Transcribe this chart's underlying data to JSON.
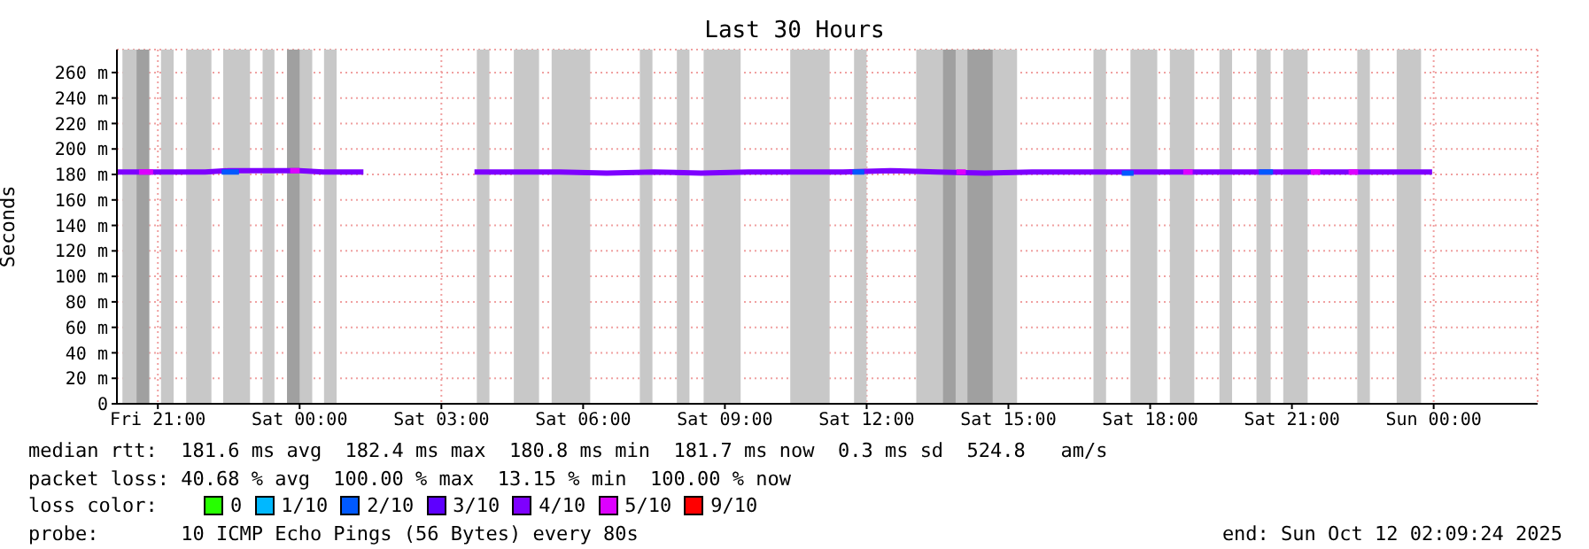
{
  "chart_data": {
    "type": "line",
    "title": "Last 30 Hours",
    "ylabel": "Seconds",
    "xlim": [
      "2025-10-10T20:08",
      "2025-10-12T02:12"
    ],
    "xticks": [
      {
        "value": "2025-10-10T21:00",
        "label": "Fri 21:00"
      },
      {
        "value": "2025-10-11T00:00",
        "label": "Sat 00:00"
      },
      {
        "value": "2025-10-11T03:00",
        "label": "Sat 03:00"
      },
      {
        "value": "2025-10-11T06:00",
        "label": "Sat 06:00"
      },
      {
        "value": "2025-10-11T09:00",
        "label": "Sat 09:00"
      },
      {
        "value": "2025-10-11T12:00",
        "label": "Sat 12:00"
      },
      {
        "value": "2025-10-11T15:00",
        "label": "Sat 15:00"
      },
      {
        "value": "2025-10-11T18:00",
        "label": "Sat 18:00"
      },
      {
        "value": "2025-10-11T21:00",
        "label": "Sat 21:00"
      },
      {
        "value": "2025-10-12T00:00",
        "label": "Sun 00:00"
      }
    ],
    "ylim": [
      0,
      278
    ],
    "yticks": [
      0,
      {
        "value": 20,
        "label": "20 m"
      },
      {
        "value": 40,
        "label": "40 m"
      },
      {
        "value": 60,
        "label": "60 m"
      },
      {
        "value": 80,
        "label": "80 m"
      },
      {
        "value": 100,
        "label": "100 m"
      },
      {
        "value": 120,
        "label": "120 m"
      },
      {
        "value": 140,
        "label": "140 m"
      },
      {
        "value": 160,
        "label": "160 m"
      },
      {
        "value": 180,
        "label": "180 m"
      },
      {
        "value": 200,
        "label": "200 m"
      },
      {
        "value": 220,
        "label": "220 m"
      },
      {
        "value": 240,
        "label": "240 m"
      },
      {
        "value": 260,
        "label": "260 m"
      }
    ],
    "grid": true,
    "legend": "bottom",
    "legend_title": "loss color:",
    "series": [
      {
        "name": "0",
        "color": "#26ff00"
      },
      {
        "name": "1/10",
        "color": "#00b8ff"
      },
      {
        "name": "2/10",
        "color": "#0059ff",
        "x": [
          "2025-10-10T22:21",
          "2025-10-10T22:43",
          "2025-10-11T06:00",
          "2025-10-11T11:42",
          "2025-10-11T11:57",
          "2025-10-11T15:00",
          "2025-10-11T17:24",
          "2025-10-11T17:39",
          "2025-10-11T19:00",
          "2025-10-11T20:18",
          "2025-10-11T20:36"
        ],
        "values": [
          182,
          182,
          null,
          182,
          182,
          null,
          181,
          181,
          null,
          182,
          182
        ]
      },
      {
        "name": "3/10",
        "color": "#5e00ff"
      },
      {
        "name": "4/10",
        "color": "#7e00ff",
        "x": [
          "2025-10-10T20:08",
          "2025-10-10T21:00",
          "2025-10-10T21:30",
          "2025-10-10T22:00",
          "2025-10-10T22:30",
          "2025-10-10T23:00",
          "2025-10-10T23:30",
          "2025-10-11T00:00",
          "2025-10-11T00:30",
          "2025-10-11T01:00",
          "2025-10-11T01:21",
          "2025-10-11T02:30",
          "2025-10-11T03:42",
          "2025-10-11T04:30",
          "2025-10-11T05:30",
          "2025-10-11T06:30",
          "2025-10-11T07:30",
          "2025-10-11T08:30",
          "2025-10-11T09:30",
          "2025-10-11T10:30",
          "2025-10-11T11:30",
          "2025-10-11T12:30",
          "2025-10-11T13:30",
          "2025-10-11T14:30",
          "2025-10-11T15:30",
          "2025-10-11T16:30",
          "2025-10-11T17:30",
          "2025-10-11T18:30",
          "2025-10-11T19:30",
          "2025-10-11T20:30",
          "2025-10-11T21:30",
          "2025-10-11T22:30",
          "2025-10-11T23:30",
          "2025-10-11T23:58"
        ],
        "values": [
          182,
          182,
          182,
          182,
          183,
          183,
          183,
          183,
          182,
          182,
          182,
          null,
          182,
          182,
          182,
          181,
          182,
          181,
          182,
          182,
          182,
          183,
          182,
          181,
          182,
          182,
          182,
          182,
          182,
          182,
          182,
          182,
          182,
          182
        ]
      },
      {
        "name": "5/10",
        "color": "#dd00ff",
        "x": [
          "2025-10-10T20:36",
          "2025-10-10T20:54",
          "2025-10-10T22:00",
          "2025-10-10T23:48",
          "2025-10-11T00:00",
          "2025-10-11T06:00",
          "2025-10-11T13:54",
          "2025-10-11T14:06",
          "2025-10-11T16:00",
          "2025-10-11T18:42",
          "2025-10-11T18:54",
          "2025-10-11T20:00",
          "2025-10-11T21:24",
          "2025-10-11T21:36",
          "2025-10-11T22:00",
          "2025-10-11T22:12",
          "2025-10-11T22:24"
        ],
        "values": [
          182,
          182,
          null,
          183,
          183,
          null,
          182,
          182,
          null,
          182,
          182,
          null,
          182,
          182,
          null,
          182,
          182
        ]
      },
      {
        "name": "9/10",
        "color": "#ff0000"
      }
    ],
    "bands": [
      {
        "axis": "x",
        "from": "2025-10-10T20:15",
        "to": "2025-10-10T20:49",
        "color": "#c8c8c8"
      },
      {
        "axis": "x",
        "from": "2025-10-10T20:33",
        "to": "2025-10-10T20:49",
        "color": "#a0a0a0"
      },
      {
        "axis": "x",
        "from": "2025-10-10T21:04",
        "to": "2025-10-10T21:20",
        "color": "#c8c8c8"
      },
      {
        "axis": "x",
        "from": "2025-10-10T21:36",
        "to": "2025-10-10T22:08",
        "color": "#c8c8c8"
      },
      {
        "axis": "x",
        "from": "2025-10-10T22:23",
        "to": "2025-10-10T22:57",
        "color": "#c8c8c8"
      },
      {
        "axis": "x",
        "from": "2025-10-10T23:13",
        "to": "2025-10-10T23:28",
        "color": "#c8c8c8"
      },
      {
        "axis": "x",
        "from": "2025-10-10T23:44",
        "to": "2025-10-11T00:16",
        "color": "#c8c8c8"
      },
      {
        "axis": "x",
        "from": "2025-10-10T23:44",
        "to": "2025-10-11T00:00",
        "color": "#a0a0a0"
      },
      {
        "axis": "x",
        "from": "2025-10-11T00:31",
        "to": "2025-10-11T00:47",
        "color": "#c8c8c8"
      },
      {
        "axis": "x",
        "from": "2025-10-11T03:45",
        "to": "2025-10-11T04:01",
        "color": "#c8c8c8"
      },
      {
        "axis": "x",
        "from": "2025-10-11T04:32",
        "to": "2025-10-11T05:04",
        "color": "#c8c8c8"
      },
      {
        "axis": "x",
        "from": "2025-10-11T05:20",
        "to": "2025-10-11T06:09",
        "color": "#c8c8c8"
      },
      {
        "axis": "x",
        "from": "2025-10-11T07:12",
        "to": "2025-10-11T07:28",
        "color": "#c8c8c8"
      },
      {
        "axis": "x",
        "from": "2025-10-11T07:59",
        "to": "2025-10-11T08:15",
        "color": "#c8c8c8"
      },
      {
        "axis": "x",
        "from": "2025-10-11T08:33",
        "to": "2025-10-11T09:20",
        "color": "#c8c8c8"
      },
      {
        "axis": "x",
        "from": "2025-10-11T10:23",
        "to": "2025-10-11T11:13",
        "color": "#c8c8c8"
      },
      {
        "axis": "x",
        "from": "2025-10-11T11:44",
        "to": "2025-10-11T12:00",
        "color": "#c8c8c8"
      },
      {
        "axis": "x",
        "from": "2025-10-11T13:03",
        "to": "2025-10-11T15:11",
        "color": "#c8c8c8"
      },
      {
        "axis": "x",
        "from": "2025-10-11T13:37",
        "to": "2025-10-11T13:53",
        "color": "#a0a0a0"
      },
      {
        "axis": "x",
        "from": "2025-10-11T14:08",
        "to": "2025-10-11T14:40",
        "color": "#a0a0a0"
      },
      {
        "axis": "x",
        "from": "2025-10-11T16:48",
        "to": "2025-10-11T17:04",
        "color": "#c8c8c8"
      },
      {
        "axis": "x",
        "from": "2025-10-11T17:35",
        "to": "2025-10-11T18:09",
        "color": "#c8c8c8"
      },
      {
        "axis": "x",
        "from": "2025-10-11T18:25",
        "to": "2025-10-11T18:56",
        "color": "#c8c8c8"
      },
      {
        "axis": "x",
        "from": "2025-10-11T19:28",
        "to": "2025-10-11T19:44",
        "color": "#c8c8c8"
      },
      {
        "axis": "x",
        "from": "2025-10-11T20:15",
        "to": "2025-10-11T20:33",
        "color": "#c8c8c8"
      },
      {
        "axis": "x",
        "from": "2025-10-11T20:49",
        "to": "2025-10-11T21:20",
        "color": "#c8c8c8"
      },
      {
        "axis": "x",
        "from": "2025-10-11T22:23",
        "to": "2025-10-11T22:39",
        "color": "#c8c8c8"
      },
      {
        "axis": "x",
        "from": "2025-10-11T23:13",
        "to": "2025-10-11T23:44",
        "color": "#c8c8c8"
      }
    ],
    "annotations": [
      "median rtt:  181.6 ms avg  182.4 ms max  180.8 ms min  181.7 ms now  0.3 ms sd  524.8   am/s",
      "packet loss: 40.68 % avg  100.00 % max  13.15 % min  100.00 % now",
      "probe:       10 ICMP Echo Pings (56 Bytes) every 80s",
      "end: Sun Oct 12 02:09:24 2025"
    ]
  }
}
